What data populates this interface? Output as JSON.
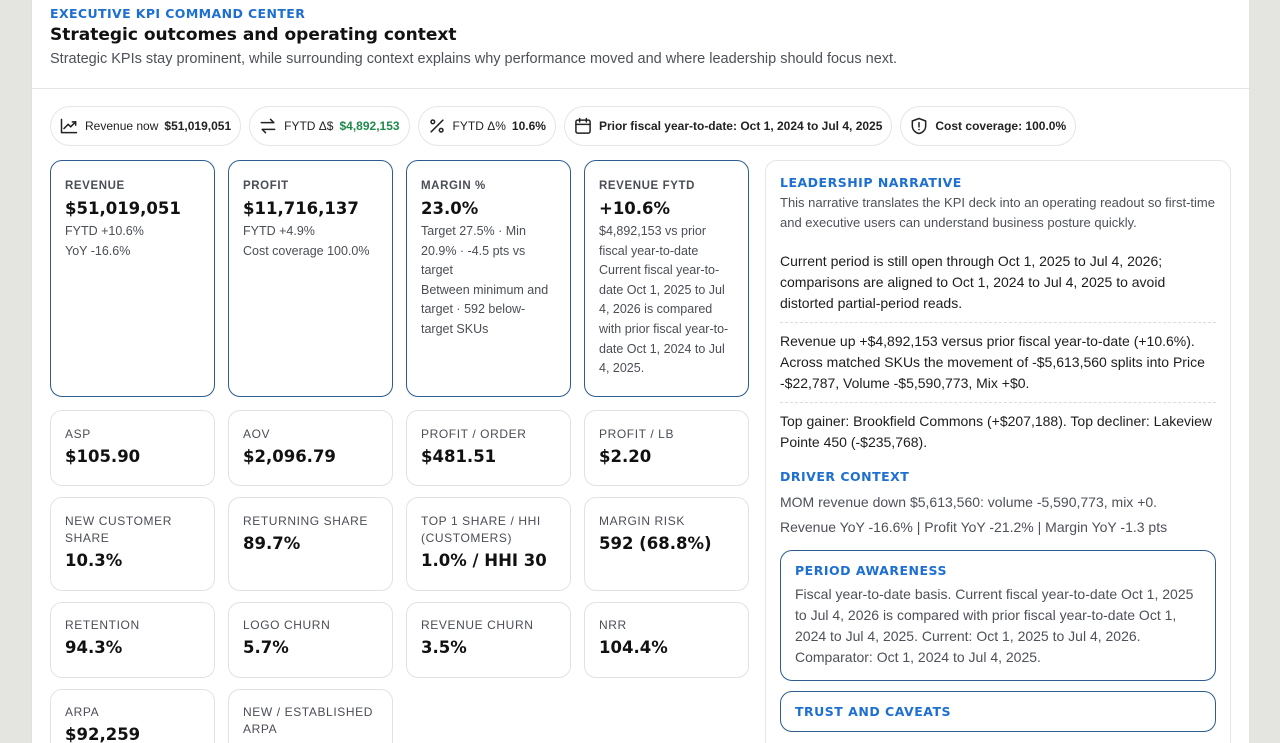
{
  "header": {
    "eyebrow": "EXECUTIVE KPI COMMAND CENTER",
    "title": "Strategic outcomes and operating context",
    "subtitle": "Strategic KPIs stay prominent, while surrounding context explains why performance moved and where leadership should focus next."
  },
  "chips": {
    "revenue_label": "Revenue now",
    "revenue_value": "$51,019,051",
    "fytd_delta_label": "FYTD Δ$",
    "fytd_delta_value": "$4,892,153",
    "fytd_pct_label": "FYTD Δ%",
    "fytd_pct_value": "10.6%",
    "prior_period": "Prior fiscal year-to-date: Oct 1, 2024 to Jul 4, 2025",
    "cost_coverage": "Cost coverage: 100.0%"
  },
  "hero": {
    "revenue": {
      "label": "REVENUE",
      "value": "$51,019,051",
      "line1": "FYTD +10.6%",
      "line2": "YoY -16.6%"
    },
    "profit": {
      "label": "PROFIT",
      "value": "$11,716,137",
      "line1": "FYTD +4.9%",
      "line2": "Cost coverage 100.0%"
    },
    "margin": {
      "label": "MARGIN %",
      "value": "23.0%",
      "line1": "Target 27.5% · Min 20.9% · -4.5 pts vs target",
      "line2": "Between minimum and target · 592 below-target SKUs"
    },
    "revenue_fytd": {
      "label": "REVENUE FYTD",
      "value": "+10.6%",
      "line1": "$4,892,153 vs prior fiscal year-to-date",
      "line2": "Current fiscal year-to-date Oct 1, 2025 to Jul 4, 2026 is compared with prior fiscal year-to-date Oct 1, 2024 to Jul 4, 2025."
    }
  },
  "metrics": [
    {
      "label": "ASP",
      "value": "$105.90"
    },
    {
      "label": "AOV",
      "value": "$2,096.79"
    },
    {
      "label": "PROFIT / ORDER",
      "value": "$481.51"
    },
    {
      "label": "PROFIT / LB",
      "value": "$2.20"
    },
    {
      "label": "NEW CUSTOMER SHARE",
      "value": "10.3%"
    },
    {
      "label": "RETURNING SHARE",
      "value": "89.7%"
    },
    {
      "label": "TOP 1 SHARE / HHI (CUSTOMERS)",
      "value": "1.0% / HHI 30"
    },
    {
      "label": "MARGIN RISK",
      "value": "592 (68.8%)"
    },
    {
      "label": "RETENTION",
      "value": "94.3%"
    },
    {
      "label": "LOGO CHURN",
      "value": "5.7%"
    },
    {
      "label": "REVENUE CHURN",
      "value": "3.5%"
    },
    {
      "label": "NRR",
      "value": "104.4%"
    },
    {
      "label": "ARPA",
      "value": "$92,259"
    },
    {
      "label": "NEW / ESTABLISHED ARPA",
      "value": ""
    }
  ],
  "narrative": {
    "title": "LEADERSHIP NARRATIVE",
    "intro": "This narrative translates the KPI deck into an operating readout so first-time and executive users can understand business posture quickly.",
    "para1": "Current period is still open through Oct 1, 2025 to Jul 4, 2026; comparisons are aligned to Oct 1, 2024 to Jul 4, 2025 to avoid distorted partial-period reads.",
    "para2": "Revenue up +$4,892,153 versus prior fiscal year-to-date (+10.6%). Across matched SKUs the movement of -$5,613,560 splits into Price -$22,787, Volume -$5,590,773, Mix +$0.",
    "para3": "Top gainer: Brookfield Commons (+$207,188). Top decliner: Lakeview Pointe 450 (-$235,768)."
  },
  "driver": {
    "title": "DRIVER CONTEXT",
    "line1": "MOM revenue down $5,613,560: volume -5,590,773, mix +0.",
    "line2": "Revenue YoY -16.6% | Profit YoY -21.2% | Margin YoY -1.3 pts"
  },
  "period": {
    "title": "PERIOD AWARENESS",
    "text": "Fiscal year-to-date basis. Current fiscal year-to-date Oct 1, 2025 to Jul 4, 2026 is compared with prior fiscal year-to-date Oct 1, 2024 to Jul 4, 2025. Current: Oct 1, 2025 to Jul 4, 2026. Comparator: Oct 1, 2024 to Jul 4, 2025."
  },
  "trust": {
    "title": "TRUST AND CAVEATS"
  },
  "colors": {
    "accent": "#1d6fd1",
    "positive": "#1f8a4c",
    "hero_border": "#2d5c8f"
  }
}
